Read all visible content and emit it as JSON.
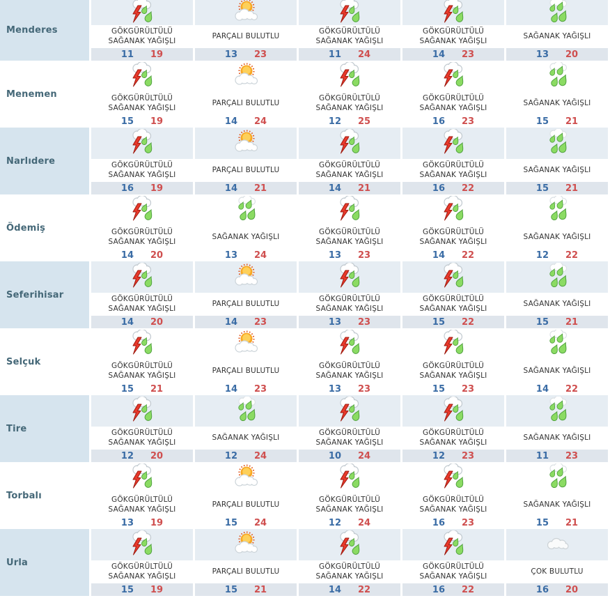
{
  "colors": {
    "row_shade": "#d6e4ee",
    "icon_area_shade": "#e6edf3",
    "temp_strip_shade": "#dfe5ec",
    "district_name_text": "#456878",
    "condition_text": "#333333",
    "min_temp_text": "#3a6ca5",
    "max_temp_text": "#cf4f4f",
    "thunder_bolt_red": "#e8392b",
    "rain_drop_green": "#8bdb63",
    "sun_orange": "#f9a825"
  },
  "table": {
    "rows": [
      {
        "district": "Menderes",
        "shaded": true,
        "days": [
          {
            "condition": "GÖKGÜRÜLTÜLÜ SAĞANAK YAĞIŞLI",
            "icon": "thunderstorm-icon",
            "min": "11",
            "max": "19"
          },
          {
            "condition": "PARÇALI BULUTLU",
            "icon": "partly-cloudy-icon",
            "min": "13",
            "max": "23"
          },
          {
            "condition": "GÖKGÜRÜLTÜLÜ SAĞANAK YAĞIŞLI",
            "icon": "thunderstorm-icon",
            "min": "11",
            "max": "24"
          },
          {
            "condition": "GÖKGÜRÜLTÜLÜ SAĞANAK YAĞIŞLI",
            "icon": "thunderstorm-icon",
            "min": "14",
            "max": "23"
          },
          {
            "condition": "SAĞANAK YAĞIŞLI",
            "icon": "rain-shower-icon",
            "min": "13",
            "max": "20"
          }
        ]
      },
      {
        "district": "Menemen",
        "shaded": false,
        "days": [
          {
            "condition": "GÖKGÜRÜLTÜLÜ SAĞANAK YAĞIŞLI",
            "icon": "thunderstorm-icon",
            "min": "15",
            "max": "19"
          },
          {
            "condition": "PARÇALI BULUTLU",
            "icon": "partly-cloudy-icon",
            "min": "14",
            "max": "24"
          },
          {
            "condition": "GÖKGÜRÜLTÜLÜ SAĞANAK YAĞIŞLI",
            "icon": "thunderstorm-icon",
            "min": "12",
            "max": "25"
          },
          {
            "condition": "GÖKGÜRÜLTÜLÜ SAĞANAK YAĞIŞLI",
            "icon": "thunderstorm-icon",
            "min": "16",
            "max": "23"
          },
          {
            "condition": "SAĞANAK YAĞIŞLI",
            "icon": "rain-shower-icon",
            "min": "15",
            "max": "21"
          }
        ]
      },
      {
        "district": "Narlıdere",
        "shaded": true,
        "days": [
          {
            "condition": "GÖKGÜRÜLTÜLÜ SAĞANAK YAĞIŞLI",
            "icon": "thunderstorm-icon",
            "min": "16",
            "max": "19"
          },
          {
            "condition": "PARÇALI BULUTLU",
            "icon": "partly-cloudy-icon",
            "min": "14",
            "max": "21"
          },
          {
            "condition": "GÖKGÜRÜLTÜLÜ SAĞANAK YAĞIŞLI",
            "icon": "thunderstorm-icon",
            "min": "14",
            "max": "21"
          },
          {
            "condition": "GÖKGÜRÜLTÜLÜ SAĞANAK YAĞIŞLI",
            "icon": "thunderstorm-icon",
            "min": "16",
            "max": "22"
          },
          {
            "condition": "SAĞANAK YAĞIŞLI",
            "icon": "rain-shower-icon",
            "min": "15",
            "max": "21"
          }
        ]
      },
      {
        "district": "Ödemiş",
        "shaded": false,
        "days": [
          {
            "condition": "GÖKGÜRÜLTÜLÜ SAĞANAK YAĞIŞLI",
            "icon": "thunderstorm-icon",
            "min": "14",
            "max": "20"
          },
          {
            "condition": "SAĞANAK YAĞIŞLI",
            "icon": "rain-shower-icon",
            "min": "13",
            "max": "24"
          },
          {
            "condition": "GÖKGÜRÜLTÜLÜ SAĞANAK YAĞIŞLI",
            "icon": "thunderstorm-icon",
            "min": "13",
            "max": "23"
          },
          {
            "condition": "GÖKGÜRÜLTÜLÜ SAĞANAK YAĞIŞLI",
            "icon": "thunderstorm-icon",
            "min": "14",
            "max": "22"
          },
          {
            "condition": "SAĞANAK YAĞIŞLI",
            "icon": "rain-shower-icon",
            "min": "12",
            "max": "22"
          }
        ]
      },
      {
        "district": "Seferihisar",
        "shaded": true,
        "days": [
          {
            "condition": "GÖKGÜRÜLTÜLÜ SAĞANAK YAĞIŞLI",
            "icon": "thunderstorm-icon",
            "min": "14",
            "max": "20"
          },
          {
            "condition": "PARÇALI BULUTLU",
            "icon": "partly-cloudy-icon",
            "min": "14",
            "max": "23"
          },
          {
            "condition": "GÖKGÜRÜLTÜLÜ SAĞANAK YAĞIŞLI",
            "icon": "thunderstorm-icon",
            "min": "13",
            "max": "23"
          },
          {
            "condition": "GÖKGÜRÜLTÜLÜ SAĞANAK YAĞIŞLI",
            "icon": "thunderstorm-icon",
            "min": "15",
            "max": "22"
          },
          {
            "condition": "SAĞANAK YAĞIŞLI",
            "icon": "rain-shower-icon",
            "min": "15",
            "max": "21"
          }
        ]
      },
      {
        "district": "Selçuk",
        "shaded": false,
        "days": [
          {
            "condition": "GÖKGÜRÜLTÜLÜ SAĞANAK YAĞIŞLI",
            "icon": "thunderstorm-icon",
            "min": "15",
            "max": "21"
          },
          {
            "condition": "PARÇALI BULUTLU",
            "icon": "partly-cloudy-icon",
            "min": "14",
            "max": "23"
          },
          {
            "condition": "GÖKGÜRÜLTÜLÜ SAĞANAK YAĞIŞLI",
            "icon": "thunderstorm-icon",
            "min": "13",
            "max": "23"
          },
          {
            "condition": "GÖKGÜRÜLTÜLÜ SAĞANAK YAĞIŞLI",
            "icon": "thunderstorm-icon",
            "min": "15",
            "max": "23"
          },
          {
            "condition": "SAĞANAK YAĞIŞLI",
            "icon": "rain-shower-icon",
            "min": "14",
            "max": "22"
          }
        ]
      },
      {
        "district": "Tire",
        "shaded": true,
        "days": [
          {
            "condition": "GÖKGÜRÜLTÜLÜ SAĞANAK YAĞIŞLI",
            "icon": "thunderstorm-icon",
            "min": "12",
            "max": "20"
          },
          {
            "condition": "SAĞANAK YAĞIŞLI",
            "icon": "rain-shower-icon",
            "min": "12",
            "max": "24"
          },
          {
            "condition": "GÖKGÜRÜLTÜLÜ SAĞANAK YAĞIŞLI",
            "icon": "thunderstorm-icon",
            "min": "10",
            "max": "24"
          },
          {
            "condition": "GÖKGÜRÜLTÜLÜ SAĞANAK YAĞIŞLI",
            "icon": "thunderstorm-icon",
            "min": "12",
            "max": "23"
          },
          {
            "condition": "SAĞANAK YAĞIŞLI",
            "icon": "rain-shower-icon",
            "min": "11",
            "max": "23"
          }
        ]
      },
      {
        "district": "Torbalı",
        "shaded": false,
        "days": [
          {
            "condition": "GÖKGÜRÜLTÜLÜ SAĞANAK YAĞIŞLI",
            "icon": "thunderstorm-icon",
            "min": "13",
            "max": "19"
          },
          {
            "condition": "PARÇALI BULUTLU",
            "icon": "partly-cloudy-icon",
            "min": "15",
            "max": "24"
          },
          {
            "condition": "GÖKGÜRÜLTÜLÜ SAĞANAK YAĞIŞLI",
            "icon": "thunderstorm-icon",
            "min": "12",
            "max": "24"
          },
          {
            "condition": "GÖKGÜRÜLTÜLÜ SAĞANAK YAĞIŞLI",
            "icon": "thunderstorm-icon",
            "min": "16",
            "max": "23"
          },
          {
            "condition": "SAĞANAK YAĞIŞLI",
            "icon": "rain-shower-icon",
            "min": "15",
            "max": "21"
          }
        ]
      },
      {
        "district": "Urla",
        "shaded": true,
        "days": [
          {
            "condition": "GÖKGÜRÜLTÜLÜ SAĞANAK YAĞIŞLI",
            "icon": "thunderstorm-icon",
            "min": "15",
            "max": "19"
          },
          {
            "condition": "PARÇALI BULUTLU",
            "icon": "partly-cloudy-icon",
            "min": "15",
            "max": "21"
          },
          {
            "condition": "GÖKGÜRÜLTÜLÜ SAĞANAK YAĞIŞLI",
            "icon": "thunderstorm-icon",
            "min": "14",
            "max": "22"
          },
          {
            "condition": "GÖKGÜRÜLTÜLÜ SAĞANAK YAĞIŞLI",
            "icon": "thunderstorm-icon",
            "min": "16",
            "max": "22"
          },
          {
            "condition": "ÇOK BULUTLU",
            "icon": "very-cloudy-icon",
            "min": "16",
            "max": "20"
          }
        ]
      }
    ]
  }
}
